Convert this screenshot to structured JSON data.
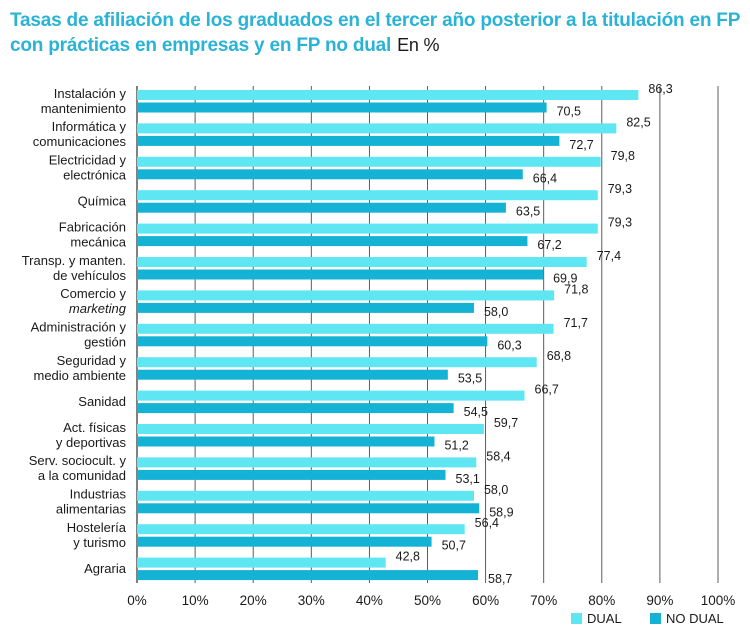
{
  "title_main": "Tasas de afiliación de los graduados en el tercer año posterior a la titulación en FP con prácticas en empresas y en FP no dual",
  "title_unit": "En %",
  "colors": {
    "dual": "#5ee6f3",
    "no_dual": "#14b3d6",
    "grid": "#4a4a4a"
  },
  "chart_data": {
    "type": "bar",
    "orientation": "horizontal",
    "categories": [
      [
        "Instalación y",
        "mantenimiento"
      ],
      [
        "Informática y",
        "comunicaciones"
      ],
      [
        "Electricidad y",
        "electrónica"
      ],
      [
        "Química"
      ],
      [
        "Fabricación",
        "mecánica"
      ],
      [
        "Transp. y manten.",
        "de vehículos"
      ],
      [
        "Comercio y",
        "marketing"
      ],
      [
        "Administración y",
        "gestión"
      ],
      [
        "Seguridad y",
        "medio ambiente"
      ],
      [
        "Sanidad"
      ],
      [
        "Act. físicas",
        "y deportivas"
      ],
      [
        "Serv. sociocult. y",
        "a la comunidad"
      ],
      [
        "Industrias",
        "alimentarias"
      ],
      [
        "Hostelería",
        "y turismo"
      ],
      [
        "Agraria"
      ]
    ],
    "series": [
      {
        "name": "DUAL",
        "values": [
          86.3,
          82.5,
          79.8,
          79.3,
          79.3,
          77.4,
          71.8,
          71.7,
          68.8,
          66.7,
          59.7,
          58.4,
          58.0,
          56.4,
          42.8
        ]
      },
      {
        "name": "NO DUAL",
        "values": [
          70.5,
          72.7,
          66.4,
          63.5,
          67.2,
          69.9,
          58.0,
          60.3,
          53.5,
          54.5,
          51.2,
          53.1,
          58.9,
          50.7,
          58.7
        ]
      }
    ],
    "value_labels": [
      [
        "86,3",
        "82,5",
        "79,8",
        "79,3",
        "79,3",
        "77,4",
        "71,8",
        "71,7",
        "68,8",
        "66,7",
        "59,7",
        "58,4",
        "58,0",
        "56,4",
        "42,8"
      ],
      [
        "70,5",
        "72,7",
        "66,4",
        "63,5",
        "67,2",
        "69,9",
        "58,0",
        "60,3",
        "53,5",
        "54,5",
        "51,2",
        "53,1",
        "58,9",
        "50,7",
        "58,7"
      ]
    ],
    "xlim": [
      0,
      100
    ],
    "xticks": [
      "0%",
      "10%",
      "20%",
      "30%",
      "40%",
      "50%",
      "60%",
      "70%",
      "80%",
      "90%",
      "100%"
    ],
    "grid": true,
    "legend": "bottom-right"
  }
}
